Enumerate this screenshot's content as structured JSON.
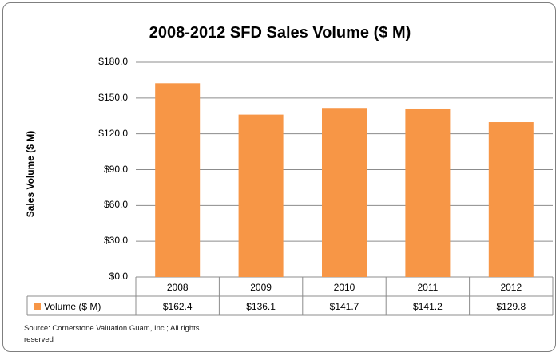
{
  "chart_data": {
    "type": "bar",
    "title": "2008-2012 SFD Sales Volume ($ M)",
    "ylabel": "Sales Volume ($ M)",
    "xlabel": "",
    "categories": [
      "2008",
      "2009",
      "2010",
      "2011",
      "2012"
    ],
    "series": [
      {
        "name": "Volume ($ M)",
        "values": [
          162.4,
          136.1,
          141.7,
          141.2,
          129.8
        ],
        "labels": [
          "$162.4",
          "$136.1",
          "$141.7",
          "$141.2",
          "$129.8"
        ]
      }
    ],
    "ylim": [
      0,
      180
    ],
    "yticks": [
      "$0.0",
      "$30.0",
      "$60.0",
      "$90.0",
      "$120.0",
      "$150.0",
      "$180.0"
    ],
    "grid": true,
    "data_table": true,
    "bar_color": "#F79646"
  },
  "source_note": "Source: Cornerstone Valuation Guam, Inc.; All rights reserved"
}
